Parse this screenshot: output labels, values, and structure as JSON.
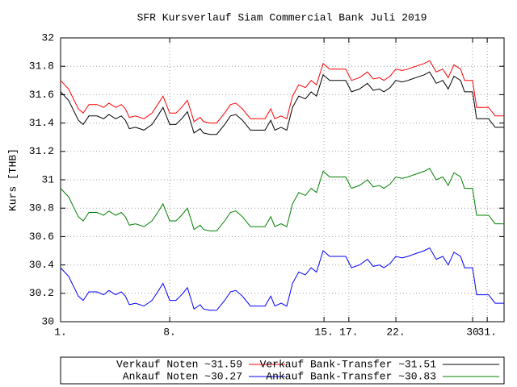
{
  "chart_data": {
    "type": "line",
    "title": "SFR Kursverlauf Siam Commercial Bank Juli 2019",
    "ylabel": "Kurs [THB]",
    "x": [
      0,
      1.8,
      4.0,
      5.1,
      6.4,
      8.2,
      9.7,
      10.9,
      12.4,
      13.7,
      14.6,
      15.5,
      16.9,
      18.8,
      20.6,
      21.9,
      23.1,
      24.6,
      26.0,
      27.3,
      28.6,
      30.1,
      31.5,
      32.2,
      33.7,
      35.2,
      37.0,
      38.3,
      39.5,
      41.0,
      42.8,
      44.6,
      46.1,
      47.4,
      48.3,
      49.7,
      51.0,
      52.3,
      53.7,
      55.2,
      56.5,
      57.7,
      59.2,
      60.7,
      61.9,
      64.3,
      65.6,
      67.4,
      69.2,
      70.5,
      71.9,
      72.9,
      74.3,
      75.6,
      77.0,
      78.3,
      80.1,
      82.0,
      83.2,
      84.7,
      86.2,
      87.4,
      88.7,
      90.2,
      91.1,
      92.9,
      93.8,
      95.6,
      96.5,
      98.0,
      100
    ],
    "series": [
      {
        "name": "Verkauf Noten ~31.59",
        "color": "#ff0000",
        "values": [
          31.7,
          31.64,
          31.5,
          31.47,
          31.53,
          31.53,
          31.51,
          31.54,
          31.51,
          31.53,
          31.5,
          31.44,
          31.45,
          31.43,
          31.47,
          31.53,
          31.59,
          31.47,
          31.47,
          31.51,
          31.56,
          31.41,
          31.44,
          31.41,
          31.4,
          31.4,
          31.47,
          31.53,
          31.54,
          31.5,
          31.43,
          31.43,
          31.43,
          31.5,
          31.43,
          31.45,
          31.43,
          31.59,
          31.67,
          31.65,
          31.7,
          31.67,
          31.82,
          31.78,
          31.78,
          31.78,
          31.7,
          31.72,
          31.76,
          31.71,
          31.72,
          31.7,
          31.73,
          31.78,
          31.77,
          31.78,
          31.8,
          31.82,
          31.84,
          31.76,
          31.78,
          31.72,
          31.81,
          31.78,
          31.7,
          31.7,
          31.51,
          31.51,
          31.51,
          31.45,
          31.45
        ]
      },
      {
        "name": "Verkauf Bank-Transfer ~31.51",
        "color": "#000000",
        "values": [
          31.62,
          31.56,
          31.42,
          31.39,
          31.45,
          31.45,
          31.43,
          31.46,
          31.43,
          31.45,
          31.42,
          31.36,
          31.37,
          31.35,
          31.39,
          31.45,
          31.51,
          31.39,
          31.39,
          31.43,
          31.48,
          31.33,
          31.36,
          31.33,
          31.32,
          31.32,
          31.39,
          31.45,
          31.46,
          31.42,
          31.35,
          31.35,
          31.35,
          31.42,
          31.35,
          31.37,
          31.35,
          31.51,
          31.59,
          31.57,
          31.62,
          31.59,
          31.74,
          31.7,
          31.7,
          31.7,
          31.62,
          31.64,
          31.68,
          31.63,
          31.64,
          31.62,
          31.65,
          31.7,
          31.69,
          31.7,
          31.72,
          31.74,
          31.76,
          31.68,
          31.7,
          31.64,
          31.73,
          31.7,
          31.62,
          31.62,
          31.43,
          31.43,
          31.43,
          31.37,
          31.37
        ]
      },
      {
        "name": "Ankauf Noten ~30.27",
        "color": "#0000ff",
        "values": [
          30.38,
          30.32,
          30.18,
          30.15,
          30.21,
          30.21,
          30.19,
          30.22,
          30.19,
          30.21,
          30.18,
          30.12,
          30.13,
          30.11,
          30.15,
          30.21,
          30.27,
          30.15,
          30.15,
          30.19,
          30.24,
          30.09,
          30.12,
          30.09,
          30.08,
          30.08,
          30.15,
          30.21,
          30.22,
          30.18,
          30.11,
          30.11,
          30.11,
          30.18,
          30.11,
          30.13,
          30.11,
          30.27,
          30.35,
          30.33,
          30.38,
          30.35,
          30.5,
          30.46,
          30.46,
          30.46,
          30.38,
          30.4,
          30.44,
          30.39,
          30.4,
          30.38,
          30.41,
          30.46,
          30.45,
          30.46,
          30.48,
          30.5,
          30.52,
          30.44,
          30.46,
          30.4,
          30.49,
          30.46,
          30.38,
          30.38,
          30.19,
          30.19,
          30.19,
          30.13,
          30.13
        ]
      },
      {
        "name": "Ankauf Bank-Transfer ~30.83",
        "color": "#008000",
        "values": [
          30.94,
          30.88,
          30.74,
          30.71,
          30.77,
          30.77,
          30.75,
          30.78,
          30.75,
          30.77,
          30.74,
          30.68,
          30.69,
          30.67,
          30.71,
          30.77,
          30.83,
          30.71,
          30.71,
          30.75,
          30.8,
          30.65,
          30.68,
          30.65,
          30.64,
          30.64,
          30.71,
          30.77,
          30.78,
          30.74,
          30.67,
          30.67,
          30.67,
          30.74,
          30.67,
          30.69,
          30.67,
          30.83,
          30.91,
          30.89,
          30.94,
          30.91,
          31.06,
          31.02,
          31.02,
          31.02,
          30.94,
          30.96,
          31.0,
          30.95,
          30.96,
          30.94,
          30.97,
          31.02,
          31.01,
          31.02,
          31.04,
          31.06,
          31.08,
          31.0,
          31.02,
          30.96,
          31.05,
          31.02,
          30.94,
          30.94,
          30.75,
          30.75,
          30.75,
          30.69,
          30.69
        ]
      }
    ],
    "xlim": [
      0,
      100
    ],
    "xticks": [
      {
        "value": 0,
        "label": "1."
      },
      {
        "value": 24.6,
        "label": "8."
      },
      {
        "value": 59.4,
        "label": "15."
      },
      {
        "value": 65.0,
        "label": "17."
      },
      {
        "value": 75.6,
        "label": "22."
      },
      {
        "value": 92.9,
        "label": "30"
      },
      {
        "value": 96.2,
        "label": "31."
      }
    ],
    "ylim": [
      30,
      32
    ],
    "yticks": [
      30,
      30.2,
      30.4,
      30.6,
      30.8,
      31,
      31.2,
      31.4,
      31.6,
      31.8,
      32
    ],
    "grid": true,
    "legend": "bottom"
  }
}
